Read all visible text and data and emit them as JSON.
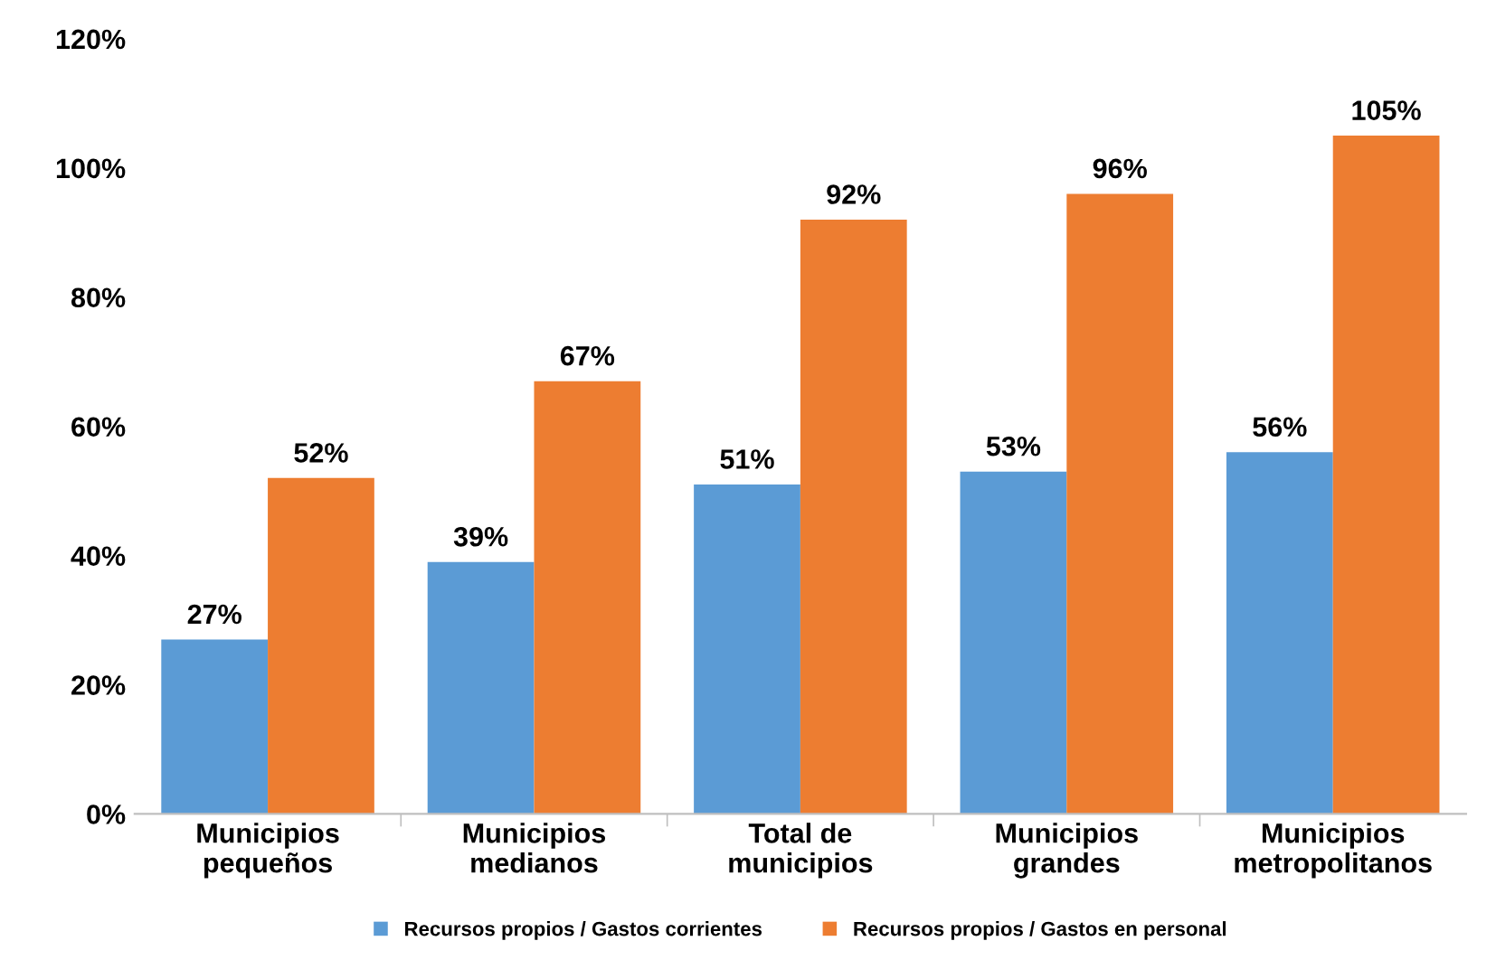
{
  "chart_data": {
    "type": "bar",
    "categories": [
      "Municipios\npequeños",
      "Municipios\nmedianos",
      "Total de\nmunicipios",
      "Municipios\ngrandes",
      "Municipios\nmetropolitanos"
    ],
    "series": [
      {
        "name": "Recursos propios / Gastos corrientes",
        "color": "#5b9bd5",
        "values": [
          27,
          39,
          51,
          53,
          56
        ],
        "value_labels": [
          "27%",
          "39%",
          "51%",
          "53%",
          "56%"
        ]
      },
      {
        "name": "Recursos propios / Gastos en personal",
        "color": "#ed7d31",
        "values": [
          52,
          67,
          92,
          96,
          105
        ],
        "value_labels": [
          "52%",
          "67%",
          "92%",
          "96%",
          "105%"
        ]
      }
    ],
    "ylim": [
      0,
      120
    ],
    "yticks": [
      {
        "value": 0,
        "label": "0%"
      },
      {
        "value": 20,
        "label": "20%"
      },
      {
        "value": 40,
        "label": "40%"
      },
      {
        "value": 60,
        "label": "60%"
      },
      {
        "value": 80,
        "label": "80%"
      },
      {
        "value": 100,
        "label": "100%"
      },
      {
        "value": 120,
        "label": "120%"
      }
    ],
    "grid": false,
    "legend": "bottom"
  }
}
